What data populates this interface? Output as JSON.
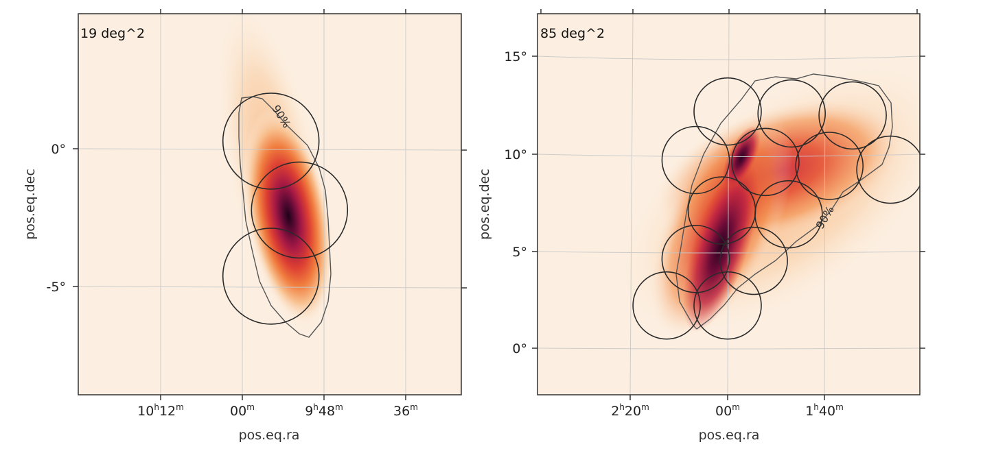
{
  "chart_data": [
    {
      "type": "heatmap",
      "area_label": "19 deg^2",
      "xlabel": "pos.eq.ra",
      "ylabel": "pos.eq.dec",
      "x_ticks": [
        {
          "h": "10",
          "m": "12",
          "value": 10.2
        },
        {
          "h": "",
          "m": "00",
          "value": 10.0
        },
        {
          "h": "9",
          "m": "48",
          "value": 9.8
        },
        {
          "h": "",
          "m": "36",
          "value": 9.6
        }
      ],
      "y_ticks": [
        {
          "label": "0°",
          "value": 0
        },
        {
          "label": "-5°",
          "value": -5
        }
      ],
      "contour_label": "90%",
      "circles": [
        {
          "ra": 9.93,
          "dec": 0.3
        },
        {
          "ra": 9.86,
          "dec": -2.2
        },
        {
          "ra": 9.93,
          "dec": -4.6
        }
      ]
    },
    {
      "type": "heatmap",
      "area_label": "85 deg^2",
      "xlabel": "pos.eq.ra",
      "ylabel": "pos.eq.dec",
      "x_ticks": [
        {
          "h": "2",
          "m": "20",
          "value": 2.333
        },
        {
          "h": "",
          "m": "00",
          "value": 2.0
        },
        {
          "h": "1",
          "m": "40",
          "value": 1.667
        }
      ],
      "y_ticks": [
        {
          "label": "15°",
          "value": 15
        },
        {
          "label": "10°",
          "value": 10
        },
        {
          "label": "5°",
          "value": 5
        },
        {
          "label": "0°",
          "value": 0
        }
      ],
      "contour_label": "90%",
      "circles": [
        {
          "ra": 2.0,
          "dec": 12.2
        },
        {
          "ra": 1.78,
          "dec": 12.1
        },
        {
          "ra": 1.57,
          "dec": 12.0
        },
        {
          "ra": 2.11,
          "dec": 9.7
        },
        {
          "ra": 1.87,
          "dec": 9.6
        },
        {
          "ra": 1.65,
          "dec": 9.4
        },
        {
          "ra": 1.44,
          "dec": 9.2
        },
        {
          "ra": 2.02,
          "dec": 7.1
        },
        {
          "ra": 1.79,
          "dec": 6.9
        },
        {
          "ra": 2.11,
          "dec": 4.6
        },
        {
          "ra": 1.91,
          "dec": 4.5
        },
        {
          "ra": 2.21,
          "dec": 2.2
        },
        {
          "ra": 2.0,
          "dec": 2.2
        }
      ]
    }
  ]
}
